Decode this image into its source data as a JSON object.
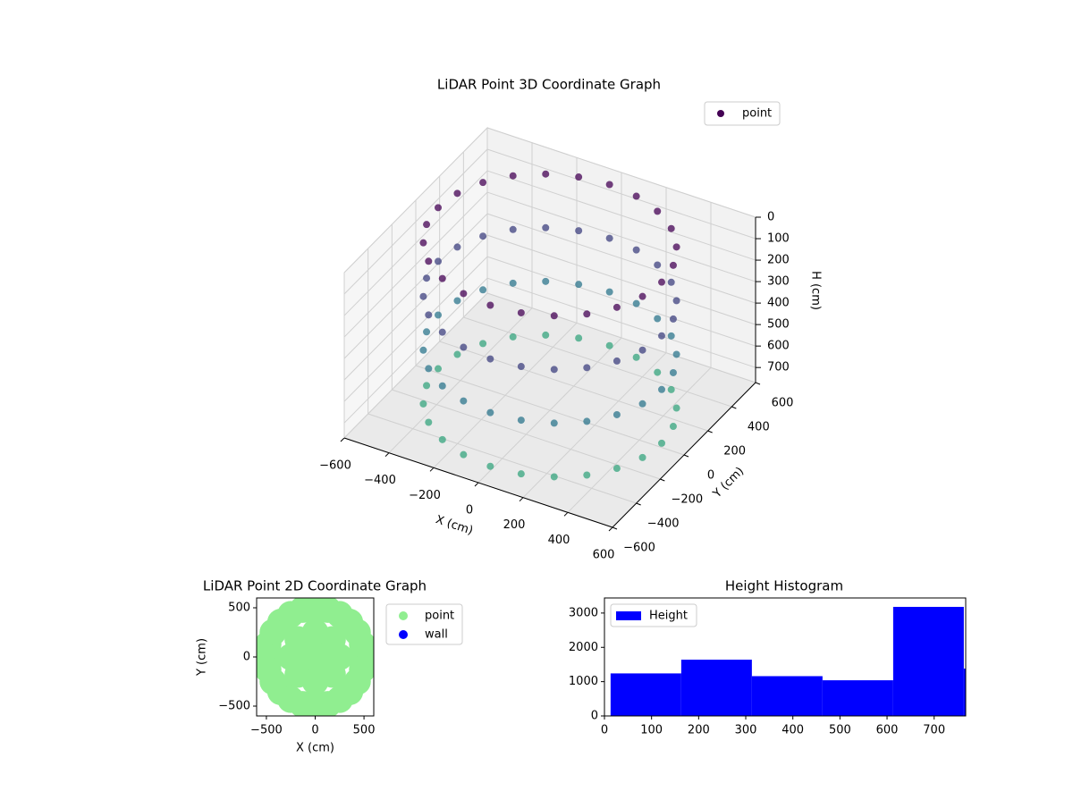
{
  "chart_data": [
    {
      "type": "scatter3d",
      "title": "LiDAR Point 3D Coordinate Graph",
      "x_label": "X (cm)",
      "y_label": "Y (cm)",
      "z_label": "H (cm)",
      "xlim": [
        -600,
        600
      ],
      "ylim": [
        -600,
        600
      ],
      "zlim": [
        0,
        770
      ],
      "z_inverted": true,
      "colormap": "viridis",
      "grid": true,
      "legend": "upper right",
      "xticks": [
        {
          "value": -600,
          "label": "−600"
        },
        {
          "value": -400,
          "label": "−400"
        },
        {
          "value": -200,
          "label": "−200"
        },
        0,
        200,
        400,
        600
      ],
      "yticks": [
        {
          "value": -600,
          "label": "−600"
        },
        {
          "value": -400,
          "label": "−400"
        },
        {
          "value": -200,
          "label": "−200"
        },
        0,
        200,
        400,
        600
      ],
      "zticks": [
        0,
        100,
        200,
        300,
        400,
        500,
        600,
        700
      ],
      "series": [
        {
          "name": "point",
          "color": "#440154",
          "x": [
            500,
            483,
            433,
            354,
            250,
            129,
            0,
            -129,
            -250,
            -354,
            -433,
            -483,
            -500,
            -483,
            -433,
            -354,
            -250,
            -129,
            0,
            129,
            250,
            354,
            433,
            483,
            500,
            483,
            433,
            354,
            250,
            129,
            0,
            -129,
            -250,
            -354,
            -433,
            -483,
            -500,
            -483,
            -433,
            -354,
            -250,
            -129,
            0,
            129,
            250,
            354,
            433,
            483,
            500,
            483,
            433,
            354,
            250,
            129,
            0,
            -129,
            -250,
            -354,
            -433,
            -483,
            -500,
            -483,
            -433,
            -354,
            -250,
            -129,
            0,
            129,
            250,
            354,
            433,
            483,
            500,
            483,
            433,
            354,
            250,
            129,
            0,
            -129,
            -250,
            -354,
            -433,
            -483,
            -500,
            -483,
            -433,
            -354,
            -250,
            -129,
            0,
            129,
            250,
            354,
            433,
            483
          ],
          "y": [
            0,
            129,
            250,
            354,
            433,
            483,
            500,
            483,
            433,
            354,
            250,
            129,
            0,
            -129,
            -250,
            -354,
            -433,
            -483,
            -500,
            -483,
            -433,
            -354,
            -250,
            -129,
            0,
            129,
            250,
            354,
            433,
            483,
            500,
            483,
            433,
            354,
            250,
            129,
            0,
            -129,
            -250,
            -354,
            -433,
            -483,
            -500,
            -483,
            -433,
            -354,
            -250,
            -129,
            0,
            129,
            250,
            354,
            433,
            483,
            500,
            483,
            433,
            354,
            250,
            129,
            0,
            -129,
            -250,
            -354,
            -433,
            -483,
            -500,
            -483,
            -433,
            -354,
            -250,
            -129,
            0,
            129,
            250,
            354,
            433,
            483,
            500,
            483,
            433,
            354,
            250,
            129,
            0,
            -129,
            -250,
            -354,
            -433,
            -483,
            -500,
            -483,
            -433,
            -354,
            -250,
            -129
          ],
          "z": [
            0,
            0,
            0,
            0,
            0,
            0,
            0,
            0,
            0,
            0,
            0,
            0,
            0,
            0,
            0,
            0,
            0,
            0,
            0,
            0,
            0,
            0,
            0,
            0,
            250,
            250,
            250,
            250,
            250,
            250,
            250,
            250,
            250,
            250,
            250,
            250,
            250,
            250,
            250,
            250,
            250,
            250,
            250,
            250,
            250,
            250,
            250,
            250,
            500,
            500,
            500,
            500,
            500,
            500,
            500,
            500,
            500,
            500,
            500,
            500,
            500,
            500,
            500,
            500,
            500,
            500,
            500,
            500,
            500,
            500,
            500,
            500,
            750,
            750,
            750,
            750,
            750,
            750,
            750,
            750,
            750,
            750,
            750,
            750,
            750,
            750,
            750,
            750,
            750,
            750,
            750,
            750,
            750,
            750,
            750,
            750
          ]
        }
      ]
    },
    {
      "type": "scatter",
      "title": "LiDAR Point 2D Coordinate Graph",
      "x_label": "X (cm)",
      "y_label": "Y (cm)",
      "xlim": [
        -600,
        600
      ],
      "ylim": [
        -600,
        600
      ],
      "legend": "outside right",
      "xticks": [
        {
          "value": -500,
          "label": "−500"
        },
        0,
        500
      ],
      "yticks": [
        {
          "value": -500,
          "label": "−500"
        },
        0,
        500
      ],
      "series": [
        {
          "name": "point",
          "color": "#90ee90",
          "x": [
            500,
            483,
            433,
            354,
            250,
            129,
            0,
            -129,
            -250,
            -354,
            -433,
            -483,
            -500,
            -483,
            -433,
            -354,
            -250,
            -129,
            0,
            129,
            250,
            354,
            433,
            483,
            250,
            177,
            0,
            -177,
            -250,
            -177,
            0,
            177,
            0
          ],
          "y": [
            0,
            129,
            250,
            354,
            433,
            483,
            500,
            483,
            433,
            354,
            250,
            129,
            0,
            -129,
            -250,
            -354,
            -433,
            -483,
            -500,
            -483,
            -433,
            -354,
            -250,
            -129,
            0,
            177,
            250,
            177,
            0,
            -177,
            -250,
            -177,
            0
          ]
        },
        {
          "name": "wall",
          "color": "#0000ff",
          "x": [],
          "y": []
        }
      ]
    },
    {
      "type": "histogram",
      "title": "Height Histogram",
      "legend": "upper left",
      "xlim": [
        0,
        767
      ],
      "ylim": [
        0,
        3440
      ],
      "xticks": [
        0,
        100,
        200,
        300,
        400,
        500,
        600,
        700
      ],
      "yticks": [
        0,
        1000,
        2000,
        3000
      ],
      "series": [
        {
          "name": "Height",
          "color": "#0000ff",
          "bins": [
            13,
            163,
            313,
            463,
            613,
            763,
            913
          ],
          "values": [
            1240,
            1640,
            1160,
            1040,
            3180,
            1380
          ]
        }
      ]
    }
  ]
}
